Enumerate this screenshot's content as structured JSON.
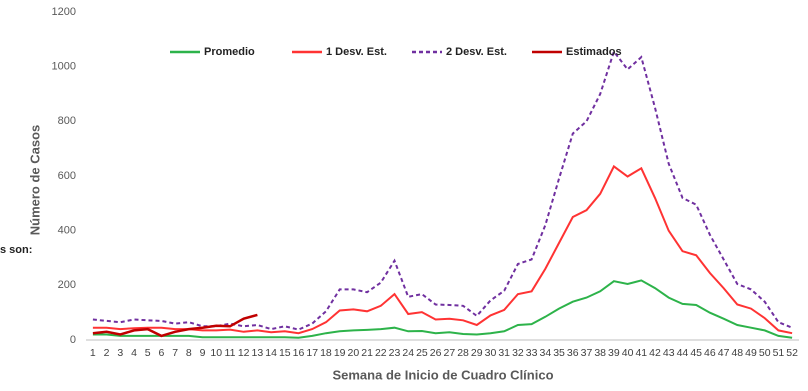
{
  "chart_data": {
    "type": "line",
    "x_label": "Semana de Inicio de Cuadro Clínico",
    "y_label": "Número de Casos",
    "annotation": "s son:",
    "categories": [
      1,
      2,
      3,
      4,
      5,
      6,
      7,
      8,
      9,
      10,
      11,
      12,
      13,
      14,
      15,
      16,
      17,
      18,
      19,
      20,
      21,
      22,
      23,
      24,
      25,
      26,
      27,
      28,
      29,
      30,
      31,
      32,
      33,
      34,
      35,
      36,
      37,
      38,
      39,
      40,
      41,
      42,
      43,
      44,
      45,
      46,
      47,
      48,
      49,
      50,
      51,
      52
    ],
    "ylim": [
      0,
      1200
    ],
    "yticks": [
      0,
      200,
      400,
      600,
      800,
      1000,
      1200
    ],
    "legend": "top",
    "series": [
      {
        "name": "Promedio",
        "color": "#2db34a",
        "dash": false,
        "values": [
          20,
          20,
          15,
          15,
          15,
          15,
          15,
          15,
          10,
          10,
          10,
          10,
          10,
          10,
          10,
          8,
          15,
          25,
          32,
          35,
          37,
          40,
          45,
          32,
          33,
          25,
          28,
          22,
          20,
          25,
          32,
          55,
          58,
          85,
          115,
          140,
          155,
          178,
          215,
          205,
          218,
          190,
          155,
          132,
          128,
          100,
          78,
          55,
          45,
          35,
          15,
          8
        ]
      },
      {
        "name": "1 Desv. Est.",
        "color": "#ff3333",
        "dash": false,
        "values": [
          45,
          45,
          40,
          43,
          45,
          45,
          40,
          40,
          35,
          35,
          38,
          30,
          35,
          28,
          32,
          25,
          40,
          65,
          108,
          112,
          105,
          125,
          168,
          95,
          102,
          75,
          78,
          72,
          55,
          90,
          110,
          168,
          178,
          260,
          355,
          450,
          475,
          535,
          635,
          598,
          628,
          520,
          400,
          325,
          310,
          245,
          190,
          130,
          115,
          80,
          35,
          25
        ]
      },
      {
        "name": "2 Desv. Est.",
        "color": "#7030a0",
        "dash": true,
        "values": [
          75,
          70,
          65,
          75,
          72,
          70,
          60,
          65,
          50,
          50,
          60,
          50,
          55,
          40,
          50,
          38,
          60,
          105,
          185,
          185,
          175,
          210,
          290,
          158,
          168,
          130,
          128,
          125,
          88,
          145,
          180,
          278,
          295,
          420,
          590,
          755,
          800,
          900,
          1055,
          990,
          1035,
          850,
          645,
          520,
          495,
          385,
          295,
          205,
          185,
          140,
          65,
          45
        ]
      },
      {
        "name": "Estimados",
        "color": "#c00000",
        "dash": false,
        "values": [
          25,
          30,
          20,
          35,
          40,
          15,
          30,
          40,
          45,
          52,
          50,
          78,
          92,
          null,
          null,
          null,
          null,
          null,
          null,
          null,
          null,
          null,
          null,
          null,
          null,
          null,
          null,
          null,
          null,
          null,
          null,
          null,
          null,
          null,
          null,
          null,
          null,
          null,
          null,
          null,
          null,
          null,
          null,
          null,
          null,
          null,
          null,
          null,
          null,
          null,
          null,
          null
        ]
      }
    ]
  }
}
